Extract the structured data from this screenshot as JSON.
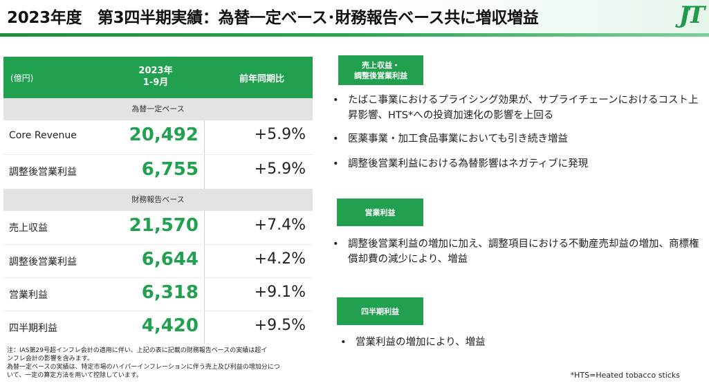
{
  "header": {
    "title": "2023年度　第3四半期実績：為替一定ベース･財務報告ベース共に増収増益",
    "logo": "JT",
    "colors": {
      "accent": "#21a04f",
      "section_bg": "#e3e3e3"
    }
  },
  "table": {
    "unit": "(億円)",
    "period": "2023年 1-9月",
    "period_line1": "2023年",
    "period_line2": "1-9月",
    "yoy_header": "前年同期比",
    "section1": "為替一定ベース",
    "section2": "財務報告ベース",
    "rows": [
      {
        "label": "Core Revenue",
        "value": "20,492",
        "yoy": "+5.9%"
      },
      {
        "label": "調整後営業利益",
        "value": "6,755",
        "yoy": "+5.9%"
      },
      {
        "label": "売上収益",
        "value": "21,570",
        "yoy": "+7.4%"
      },
      {
        "label": "調整後営業利益",
        "value": "6,644",
        "yoy": "+4.2%"
      },
      {
        "label": "営業利益",
        "value": "6,318",
        "yoy": "+9.1%"
      },
      {
        "label": "四半期利益",
        "value": "4,420",
        "yoy": "+9.5%"
      }
    ],
    "note_line1": "注：IAS第29号超インフレ会計の適用に伴い、上記の表に記載の財務報告ベースの実績は超イ",
    "note_line2": "ンフレ会計の影響を含みます。",
    "note_line3": "為替一定ベースの実績は、特定市場のハイパーインフレーションに伴う売上及び利益の増加分につ",
    "note_line4": "いて、一定の算定方法を用いて控除しています。"
  },
  "right": {
    "badge1_line1": "売上収益・",
    "badge1_line2": "調整後営業利益",
    "bullets1": [
      "たばこ事業におけるプライシング効果が、サプライチェーンにおけるコスト上昇影響、HTS*への投資加速化の影響を上回る",
      "医薬事業・加工食品事業においても引き続き増益",
      "調整後営業利益における為替影響はネガティブに発現"
    ],
    "badge2": "営業利益",
    "bullets2": [
      "調整後営業利益の増加に加え、調整項目における不動産売却益の増加、商標権償却費の減少により、増益"
    ],
    "badge3": "四半期利益",
    "bullets3": [
      "営業利益の増加により、増益"
    ],
    "bullet_symbol": "•",
    "footnote": "*HTS=Heated tobacco sticks"
  }
}
